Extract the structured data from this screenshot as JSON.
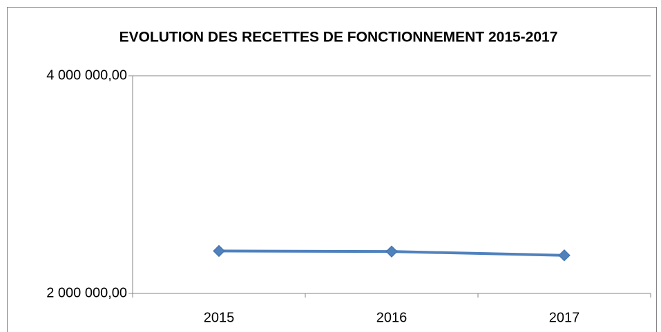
{
  "chart_data": {
    "type": "line",
    "title": "EVOLUTION DES RECETTES DE FONCTIONNEMENT 2015-2017",
    "categories": [
      "2015",
      "2016",
      "2017"
    ],
    "values": [
      2390000,
      2385000,
      2350000
    ],
    "color": "#4f81bd",
    "ylim": [
      2000000,
      4000000
    ],
    "yticks": [
      {
        "value": 2000000,
        "label": "2 000 000,00"
      },
      {
        "value": 4000000,
        "label": "4 000 000,00"
      }
    ],
    "grid": true
  }
}
